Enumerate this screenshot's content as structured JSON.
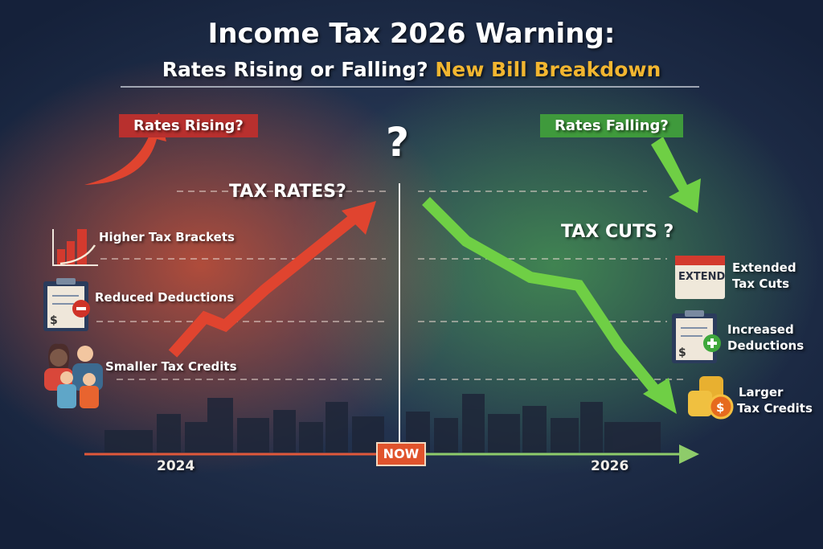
{
  "header": {
    "title": "Income Tax 2026 Warning:",
    "subtitle_main": "Rates Rising or Falling?",
    "subtitle_highlight": "New Bill Breakdown"
  },
  "left": {
    "banner": "Rates Rising?",
    "heading": "TAX RATES?",
    "items": [
      {
        "label": "Higher Tax Brackets",
        "icon": "bar-chart-up-icon"
      },
      {
        "label": "Reduced Deductions",
        "icon": "clipboard-minus-icon"
      },
      {
        "label": "Smaller Tax Credits",
        "icon": "family-icon"
      }
    ]
  },
  "center": {
    "mark": "?",
    "now_label": "NOW"
  },
  "right": {
    "banner": "Rates Falling?",
    "heading": "TAX CUTS ?",
    "items": [
      {
        "label_1": "Extended",
        "label_2": "Tax Cuts",
        "icon": "calendar-extend-icon",
        "icon_text": "EXTEND"
      },
      {
        "label_1": "Increased",
        "label_2": "Deductions",
        "icon": "clipboard-plus-icon"
      },
      {
        "label_1": "Larger",
        "label_2": "Tax Credits",
        "icon": "coins-dollar-icon"
      }
    ]
  },
  "timeline": {
    "start": "2024",
    "end": "2026"
  },
  "colors": {
    "rising": "#e0442f",
    "falling": "#6fcf45",
    "highlight": "#f2b630",
    "background": "#1c2c48"
  }
}
